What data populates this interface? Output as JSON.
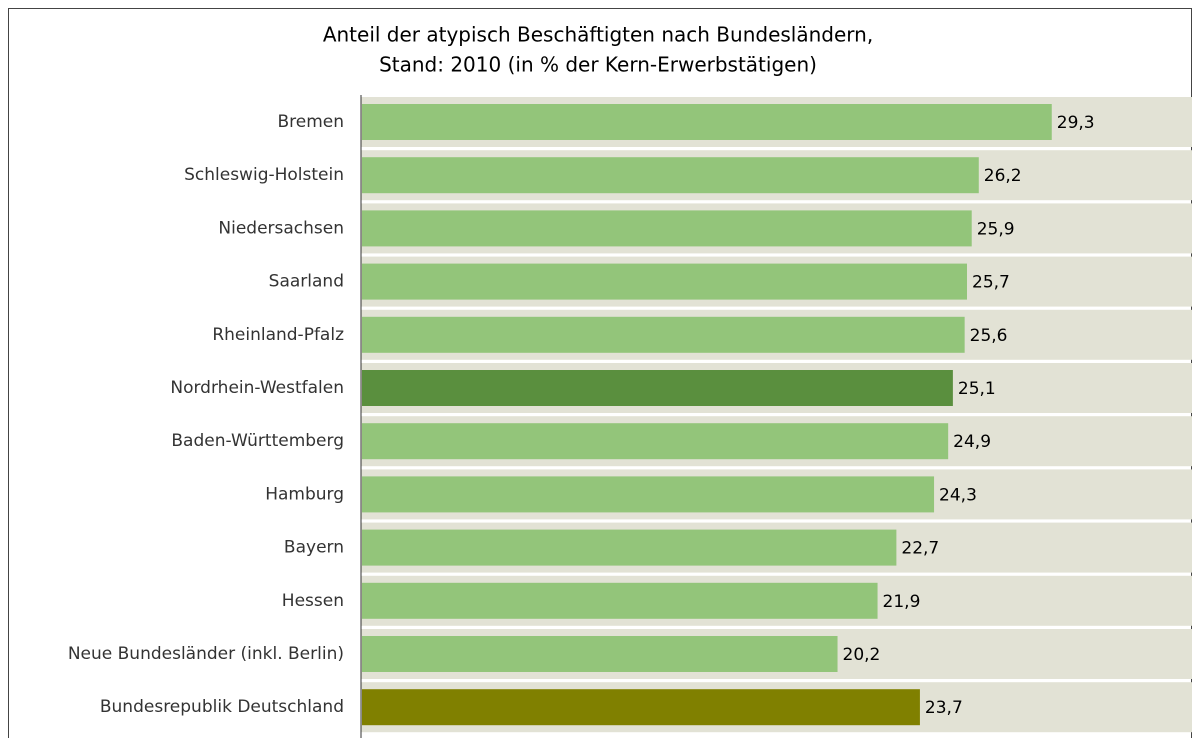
{
  "chart_data": {
    "type": "barh",
    "title": [
      "Anteil der atypisch Beschäftigten nach Bundesländern,",
      "Stand: 2010 (in % der Kern-Erwerbstätigen)"
    ],
    "categories": [
      "Bremen",
      "Schleswig-Holstein",
      "Niedersachsen",
      "Saarland",
      "Rheinland-Pfalz",
      "Nordrhein-Westfalen",
      "Baden-Württemberg",
      "Hamburg",
      "Bayern",
      "Hessen",
      "Neue Bundesländer (inkl. Berlin)",
      "Bundesrepublik Deutschland"
    ],
    "values": [
      29.3,
      26.2,
      25.9,
      25.7,
      25.6,
      25.1,
      24.9,
      24.3,
      22.7,
      21.9,
      20.2,
      23.7
    ],
    "value_labels": [
      "29,3",
      "26,2",
      "25,9",
      "25,7",
      "25,6",
      "25,1",
      "24,9",
      "24,3",
      "22,7",
      "21,9",
      "20,2",
      "23,7"
    ],
    "colors": [
      "#93c57a",
      "#93c57a",
      "#93c57a",
      "#93c57a",
      "#93c57a",
      "#5a8f3e",
      "#93c57a",
      "#93c57a",
      "#93c57a",
      "#93c57a",
      "#93c57a",
      "#808000"
    ],
    "xlim": [
      0,
      35.3
    ]
  }
}
